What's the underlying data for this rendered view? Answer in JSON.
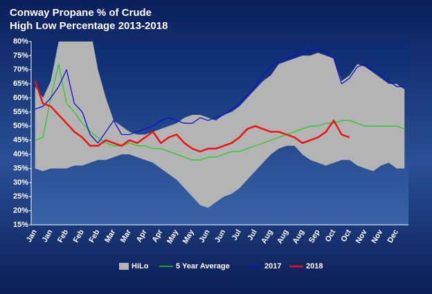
{
  "chart_data": {
    "type": "line",
    "title": "Conway Propane % of Crude",
    "subtitle": "High Low Percentage 2013-2018",
    "categories": [
      "Jan",
      null,
      "Jan",
      null,
      "Feb",
      null,
      "Feb",
      null,
      "Feb",
      null,
      "Mar",
      null,
      "Mar",
      null,
      "Apr",
      null,
      "Apr",
      null,
      "May",
      null,
      "May",
      null,
      "Jun",
      null,
      "Jun",
      null,
      "Jul",
      null,
      "Jul",
      null,
      "Aug",
      null,
      "Aug",
      null,
      "Aug",
      null,
      "Sep",
      null,
      "Oct",
      null,
      "Oct",
      null,
      "Nov",
      null,
      "Nov",
      null,
      "Dec",
      null
    ],
    "series": [
      {
        "name": "HiLo",
        "type": "band",
        "color": "#b4b4b4",
        "high": [
          64,
          60,
          66,
          80,
          85,
          85,
          85,
          85,
          70,
          60,
          52,
          50,
          48,
          47,
          47,
          48,
          49,
          50,
          51,
          53,
          54,
          54,
          53,
          52,
          54,
          55,
          57,
          60,
          63,
          66,
          68,
          72,
          73,
          74,
          75,
          75,
          76,
          75,
          74,
          66,
          68,
          72,
          71,
          69,
          67,
          65,
          65,
          63
        ],
        "low": [
          35,
          34,
          35,
          35,
          35,
          36,
          36,
          37,
          38,
          38,
          39,
          40,
          40,
          39,
          38,
          37,
          35,
          33,
          31,
          28,
          25,
          22,
          21,
          23,
          25,
          26,
          28,
          31,
          34,
          37,
          40,
          42,
          43,
          43,
          40,
          38,
          37,
          36,
          37,
          38,
          38,
          36,
          35,
          34,
          36,
          37,
          35,
          35
        ]
      },
      {
        "name": "5 Year Average",
        "color": "#22cc22",
        "values": [
          45,
          46,
          60,
          72,
          58,
          55,
          51,
          48,
          46,
          44,
          43,
          43,
          44,
          43,
          43,
          42,
          42,
          41,
          40,
          39,
          38,
          38,
          39,
          39,
          40,
          41,
          41,
          42,
          43,
          44,
          45,
          46,
          47,
          48,
          49,
          50,
          50,
          51,
          51,
          52,
          52,
          51,
          50,
          50,
          50,
          50,
          50,
          49
        ]
      },
      {
        "name": "2017",
        "color": "#1010cc",
        "values": [
          56,
          57,
          60,
          64,
          70,
          58,
          55,
          47,
          44,
          48,
          52,
          47,
          47,
          48,
          49,
          50,
          52,
          53,
          52,
          51,
          51,
          53,
          52,
          53,
          54,
          56,
          58,
          61,
          64,
          68,
          71,
          73,
          74,
          75,
          76,
          77,
          77,
          76,
          74,
          65,
          67,
          71,
          72,
          70,
          68,
          66,
          64,
          64
        ]
      },
      {
        "name": "2018",
        "color": "#ee1111",
        "values": [
          66,
          58,
          57,
          54,
          51,
          48,
          46,
          43,
          43,
          45,
          44,
          43,
          45,
          44,
          46,
          48,
          44,
          46,
          47,
          44,
          42,
          41,
          42,
          42,
          43,
          44,
          46,
          49,
          50,
          49,
          48,
          48,
          47,
          46,
          44,
          45,
          46,
          48,
          52,
          47,
          46,
          null,
          null,
          null,
          null,
          null,
          null,
          null
        ]
      }
    ],
    "ylim": [
      15,
      80
    ],
    "yticks": [
      {
        "value": 15,
        "label": "15%"
      },
      {
        "value": 20,
        "label": "20%"
      },
      {
        "value": 25,
        "label": "25%"
      },
      {
        "value": 30,
        "label": "30%"
      },
      {
        "value": 35,
        "label": "35%"
      },
      {
        "value": 40,
        "label": "40%"
      },
      {
        "value": 45,
        "label": "45%"
      },
      {
        "value": 50,
        "label": "50%"
      },
      {
        "value": 55,
        "label": "55%"
      },
      {
        "value": 60,
        "label": "60%"
      },
      {
        "value": 65,
        "label": "65%"
      },
      {
        "value": 70,
        "label": "70%"
      },
      {
        "value": 75,
        "label": "75%"
      },
      {
        "value": 80,
        "label": "80%"
      }
    ],
    "legend": "bottom"
  }
}
